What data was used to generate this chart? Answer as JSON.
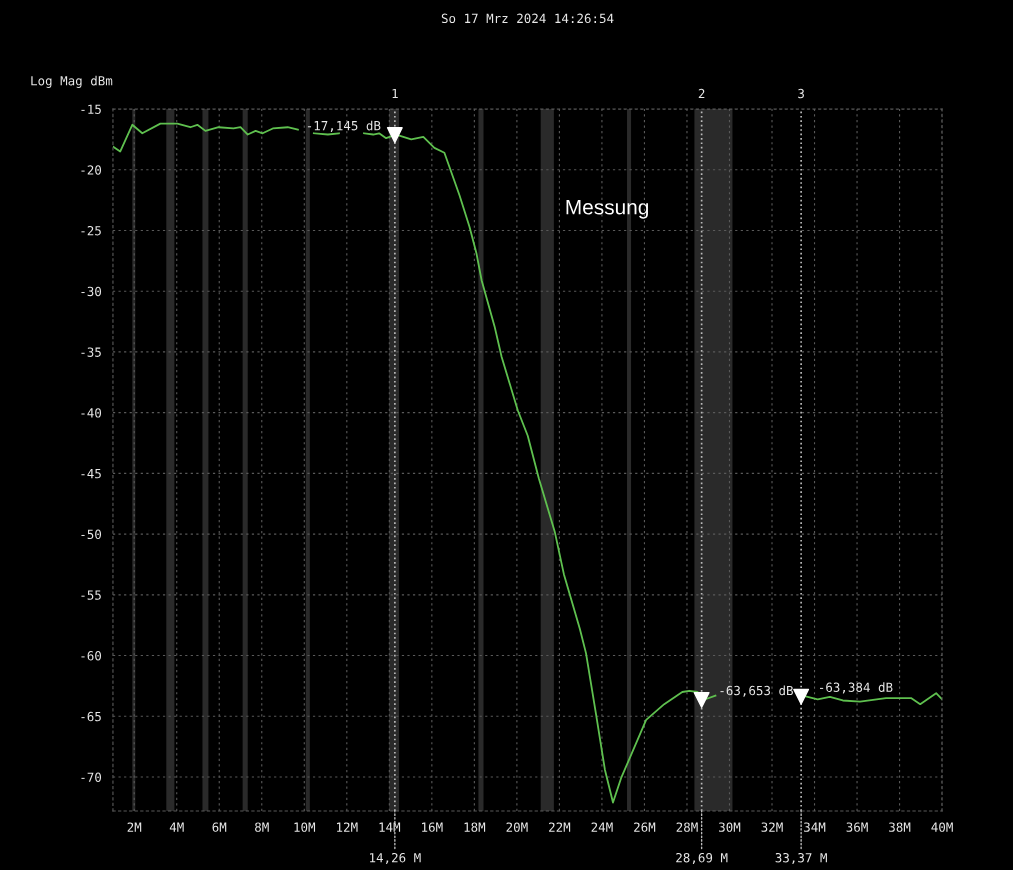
{
  "chart_data": {
    "type": "line",
    "title": "So 17 Mrz 2024 14:26:54",
    "ylabel": "Log Mag dBm",
    "xlim": [
      1,
      40
    ],
    "ylim": [
      -72.8,
      -15
    ],
    "xticks": [
      {
        "value": 2,
        "label": "2M"
      },
      {
        "value": 4,
        "label": "4M"
      },
      {
        "value": 6,
        "label": "6M"
      },
      {
        "value": 8,
        "label": "8M"
      },
      {
        "value": 10,
        "label": "10M"
      },
      {
        "value": 12,
        "label": "12M"
      },
      {
        "value": 14,
        "label": "14M"
      },
      {
        "value": 16,
        "label": "16M"
      },
      {
        "value": 18,
        "label": "18M"
      },
      {
        "value": 20,
        "label": "20M"
      },
      {
        "value": 22,
        "label": "22M"
      },
      {
        "value": 24,
        "label": "24M"
      },
      {
        "value": 26,
        "label": "26M"
      },
      {
        "value": 28,
        "label": "28M"
      },
      {
        "value": 30,
        "label": "30M"
      },
      {
        "value": 32,
        "label": "32M"
      },
      {
        "value": 34,
        "label": "34M"
      },
      {
        "value": 36,
        "label": "36M"
      },
      {
        "value": 38,
        "label": "38M"
      },
      {
        "value": 40,
        "label": "40M"
      }
    ],
    "yticks": [
      -15,
      -20,
      -25,
      -30,
      -35,
      -40,
      -45,
      -50,
      -55,
      -60,
      -65,
      -70
    ],
    "grid": true,
    "series": [
      {
        "color": "#5fc04f",
        "marker": "none",
        "line_style": "solid",
        "x": [
          1.01,
          1.34,
          1.91,
          2.38,
          3.23,
          4.03,
          4.64,
          4.97,
          5.35,
          5.97,
          6.67,
          7.0,
          7.34,
          7.71,
          8.04,
          8.52,
          9.22,
          9.7,
          10.1,
          10.45,
          11.11,
          11.63,
          12.4,
          12.81,
          13.24,
          13.52,
          13.85,
          14.32,
          15.03,
          15.6,
          16.12,
          16.59,
          17.3,
          17.77,
          18.1,
          18.34,
          18.95,
          19.28,
          20.04,
          20.51,
          21.03,
          21.78,
          22.21,
          22.96,
          23.25,
          23.72,
          24.14,
          24.52,
          24.9,
          26.08,
          26.93,
          27.78,
          28.11,
          28.49,
          28.87,
          29.34,
          31.5,
          33.44,
          34.15,
          34.72,
          35.33,
          36.14,
          37.36,
          38.54,
          38.97,
          39.72,
          40.0
        ],
        "values": [
          -18.1,
          -18.5,
          -16.3,
          -17.0,
          -16.2,
          -16.2,
          -16.5,
          -16.3,
          -16.8,
          -16.5,
          -16.6,
          -16.5,
          -17.1,
          -16.8,
          -17.0,
          -16.6,
          -16.5,
          -16.7,
          null,
          -17.0,
          -17.1,
          -17.0,
          null,
          -17.0,
          -17.1,
          -17.0,
          -17.4,
          -17.1,
          -17.5,
          -17.3,
          -18.2,
          -18.6,
          -22.1,
          -24.7,
          -26.9,
          -29.1,
          -32.9,
          -35.4,
          -39.8,
          -41.9,
          -45.4,
          -49.8,
          -53.3,
          -57.8,
          -59.8,
          -64.8,
          -69.4,
          -72.1,
          -70.1,
          -65.3,
          -64.0,
          -63.0,
          -62.9,
          -63.0,
          -63.6,
          -63.3,
          null,
          -63.3,
          -63.6,
          -63.4,
          -63.7,
          -63.8,
          -63.5,
          -63.5,
          -64.0,
          -63.1,
          -63.6
        ]
      },
      {
        "type": "scatter",
        "color": "#ffffff",
        "marker": "triangle",
        "x": [
          14.26,
          28.69,
          33.37
        ],
        "values": [
          -17.145,
          -63.653,
          -63.384
        ]
      }
    ],
    "ref_lines": [
      {
        "axis": "x",
        "value": 14.26,
        "label": "14,26 M",
        "color": "#bbbbbb",
        "line_style": "dotted"
      },
      {
        "axis": "x",
        "value": 28.69,
        "label": "28,69 M",
        "color": "#bbbbbb",
        "line_style": "dotted"
      },
      {
        "axis": "x",
        "value": 33.37,
        "label": "33,37 M",
        "color": "#bbbbbb",
        "line_style": "dotted"
      }
    ],
    "bands": [
      {
        "axis": "x",
        "from": 1.91,
        "to": 2.05,
        "color": "#2a2a2a"
      },
      {
        "axis": "x",
        "from": 3.51,
        "to": 3.89,
        "color": "#2a2a2a"
      },
      {
        "axis": "x",
        "from": 5.21,
        "to": 5.49,
        "color": "#2a2a2a"
      },
      {
        "axis": "x",
        "from": 7.1,
        "to": 7.34,
        "color": "#2a2a2a"
      },
      {
        "axis": "x",
        "from": 10.07,
        "to": 10.26,
        "color": "#2a2a2a"
      },
      {
        "axis": "x",
        "from": 13.99,
        "to": 14.46,
        "color": "#2a2a2a"
      },
      {
        "axis": "x",
        "from": 18.19,
        "to": 18.43,
        "color": "#2a2a2a"
      },
      {
        "axis": "x",
        "from": 21.12,
        "to": 21.74,
        "color": "#2a2a2a"
      },
      {
        "axis": "x",
        "from": 25.18,
        "to": 25.37,
        "color": "#2a2a2a"
      },
      {
        "axis": "x",
        "from": 28.35,
        "to": 30.14,
        "color": "#2a2a2a"
      }
    ],
    "annotations": [
      {
        "text": "1",
        "x": 14.26,
        "y": -15
      },
      {
        "text": "2",
        "x": 28.69,
        "y": -15
      },
      {
        "text": "3",
        "x": 33.37,
        "y": -15
      },
      {
        "text": "-17,145 dB",
        "x": 14.26,
        "y": -17.145
      },
      {
        "text": "-63,653 dB",
        "x": 28.69,
        "y": -63.653
      },
      {
        "text": "-63,384 dB",
        "x": 33.37,
        "y": -63.384
      },
      "Messung"
    ]
  }
}
